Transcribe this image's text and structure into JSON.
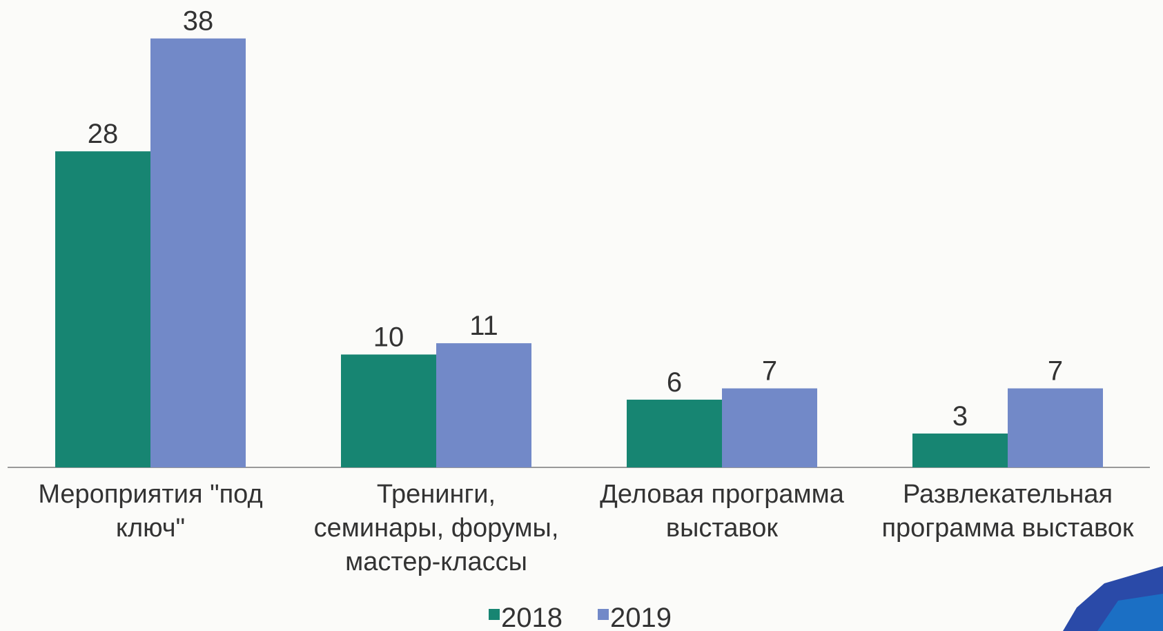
{
  "chart_data": {
    "type": "bar",
    "categories": [
      "Мероприятия \"под\nключ\"",
      "Тренинги,\nсеминары, форумы,\nмастер-классы",
      "Деловая программа\nвыставок",
      "Развлекательная\nпрограмма выставок"
    ],
    "series": [
      {
        "name": "2018",
        "color": "#178572",
        "values": [
          28,
          10,
          6,
          3
        ]
      },
      {
        "name": "2019",
        "color": "#7289c8",
        "values": [
          38,
          11,
          7,
          7
        ]
      }
    ]
  }
}
